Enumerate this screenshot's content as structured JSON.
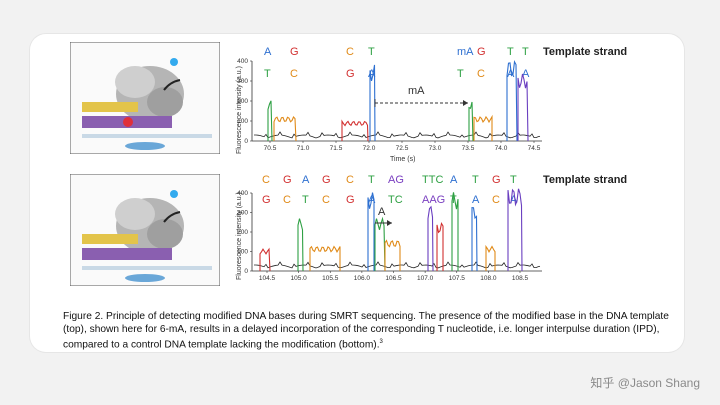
{
  "top_panel": {
    "strand_label": "Template strand",
    "bases_top": [
      {
        "t": "A",
        "c": "#2d6fd0"
      },
      {
        "t": "G",
        "c": "#d23030"
      },
      {
        "t": "C",
        "c": "#e08a18"
      },
      {
        "t": "T",
        "c": "#2ea043"
      },
      {
        "t": "mA",
        "c": "#2d6fd0"
      },
      {
        "t": "G",
        "c": "#d23030"
      },
      {
        "t": "T",
        "c": "#2ea043"
      },
      {
        "t": "T",
        "c": "#2ea043"
      }
    ],
    "bases_bottom": [
      {
        "t": "T",
        "c": "#2ea043"
      },
      {
        "t": "C",
        "c": "#e08a18"
      },
      {
        "t": "G",
        "c": "#d23030"
      },
      {
        "t": "A",
        "c": "#2d6fd0"
      },
      {
        "t": "T",
        "c": "#2ea043"
      },
      {
        "t": "C",
        "c": "#e08a18"
      },
      {
        "t": "A",
        "c": "#2d6fd0"
      },
      {
        "t": "A",
        "c": "#2d6fd0"
      }
    ],
    "annotation": "mA",
    "y_title": "Fluorescence intensity (a.u.)",
    "x_title": "Time (s)",
    "y_ticks": [
      "400",
      "300",
      "200",
      "100",
      "0"
    ],
    "x_ticks": [
      "70.5",
      "71.0",
      "71.5",
      "72.0",
      "72.5",
      "73.0",
      "73.5",
      "74.0",
      "74.5"
    ]
  },
  "bottom_panel": {
    "strand_label": "Template strand",
    "bases_top": [
      {
        "t": "C",
        "c": "#e08a18"
      },
      {
        "t": "G",
        "c": "#d23030"
      },
      {
        "t": "A",
        "c": "#2d6fd0"
      },
      {
        "t": "G",
        "c": "#d23030"
      },
      {
        "t": "C",
        "c": "#e08a18"
      },
      {
        "t": "T",
        "c": "#2ea043"
      },
      {
        "t": "AG",
        "c": "#7a3fc0"
      },
      {
        "t": "TTC",
        "c": "#2ea043"
      },
      {
        "t": "A",
        "c": "#2d6fd0"
      },
      {
        "t": "T",
        "c": "#2ea043"
      },
      {
        "t": "G",
        "c": "#d23030"
      },
      {
        "t": "T",
        "c": "#2ea043"
      }
    ],
    "bases_bottom": [
      {
        "t": "G",
        "c": "#d23030"
      },
      {
        "t": "C",
        "c": "#e08a18"
      },
      {
        "t": "T",
        "c": "#2ea043"
      },
      {
        "t": "C",
        "c": "#e08a18"
      },
      {
        "t": "G",
        "c": "#d23030"
      },
      {
        "t": "A",
        "c": "#2d6fd0"
      },
      {
        "t": "TC",
        "c": "#2ea043"
      },
      {
        "t": "AAG",
        "c": "#7a3fc0"
      },
      {
        "t": "T",
        "c": "#2ea043"
      },
      {
        "t": "A",
        "c": "#2d6fd0"
      },
      {
        "t": "C",
        "c": "#e08a18"
      },
      {
        "t": "A",
        "c": "#2d6fd0"
      }
    ],
    "annotation": "A",
    "y_title": "Fluorescence intensity (a.u.)",
    "x_title": "Time (s)",
    "y_ticks": [
      "400",
      "300",
      "200",
      "100",
      "0"
    ],
    "x_ticks": [
      "104.5",
      "105.0",
      "105.5",
      "106.0",
      "106.5",
      "107.0",
      "107.5",
      "108.0",
      "108.5"
    ]
  },
  "caption": {
    "text": "Figure 2. Principle of detecting modified DNA bases during SMRT sequencing. The presence of the modified base in the DNA template (top), shown here for 6-mA, results in a delayed incorporation of the corresponding T nucleotide, i.e. longer interpulse duration (IPD), compared to a control DNA template lacking the modification (bottom).",
    "superscript": "3"
  },
  "watermark": "知乎 @Jason Shang",
  "colors": {
    "A": "#2d6fd0",
    "C": "#e08a18",
    "G": "#d23030",
    "T": "#2ea043",
    "trace": "#222222",
    "purple": "#6a3fc0"
  }
}
